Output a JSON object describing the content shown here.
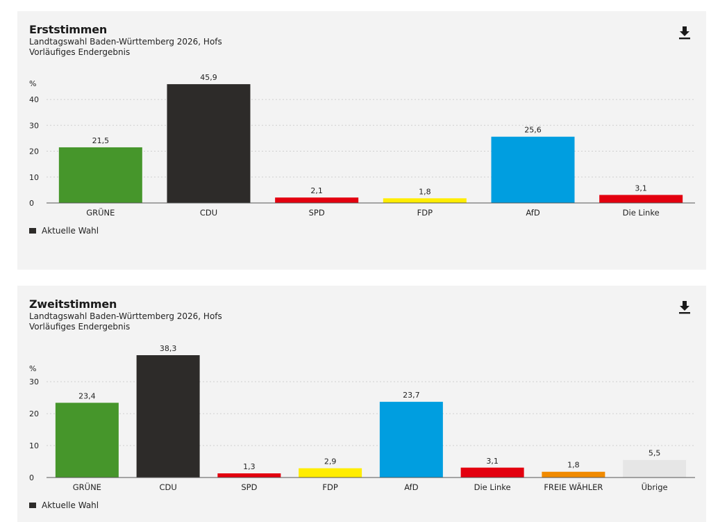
{
  "chart_data": [
    {
      "type": "bar",
      "title": "Erststimmen",
      "subtitle_line1": "Landtagswahl Baden-Württemberg 2026, Hofs",
      "subtitle_line2": "Vorläufiges Endergebnis",
      "ylabel": "%",
      "ylim": [
        0,
        47
      ],
      "yticks": [
        0,
        10,
        20,
        30,
        40
      ],
      "grid": true,
      "categories": [
        "GRÜNE",
        "CDU",
        "SPD",
        "FDP",
        "AfD",
        "Die Linke"
      ],
      "values": [
        21.5,
        45.9,
        2.1,
        1.8,
        25.6,
        3.1
      ],
      "value_labels": [
        "21,5",
        "45,9",
        "2,1",
        "1,8",
        "25,6",
        "3,1"
      ],
      "colors": [
        "#46962b",
        "#2d2b29",
        "#e3000f",
        "#ffed00",
        "#009ee0",
        "#e3000f"
      ],
      "legend": [
        {
          "label": "Aktuelle Wahl",
          "color": "#2d2b29"
        }
      ]
    },
    {
      "type": "bar",
      "title": "Zweitstimmen",
      "subtitle_line1": "Landtagswahl Baden-Württemberg 2026, Hofs",
      "subtitle_line2": "Vorläufiges Endergebnis",
      "ylabel": "%",
      "ylim": [
        0,
        38.3
      ],
      "yticks": [
        0,
        10,
        20,
        30
      ],
      "grid": true,
      "categories": [
        "GRÜNE",
        "CDU",
        "SPD",
        "FDP",
        "AfD",
        "Die Linke",
        "FREIE WÄHLER",
        "Übrige"
      ],
      "values": [
        23.4,
        38.3,
        1.3,
        2.9,
        23.7,
        3.1,
        1.8,
        5.5
      ],
      "value_labels": [
        "23,4",
        "38,3",
        "1,3",
        "2,9",
        "23,7",
        "3,1",
        "1,8",
        "5,5"
      ],
      "colors": [
        "#46962b",
        "#2d2b29",
        "#e3000f",
        "#ffed00",
        "#009ee0",
        "#e3000f",
        "#f18a00",
        "#e6e6e6"
      ],
      "legend": [
        {
          "label": "Aktuelle Wahl",
          "color": "#2d2b29"
        }
      ]
    }
  ],
  "icons": {
    "download": "download-icon"
  }
}
